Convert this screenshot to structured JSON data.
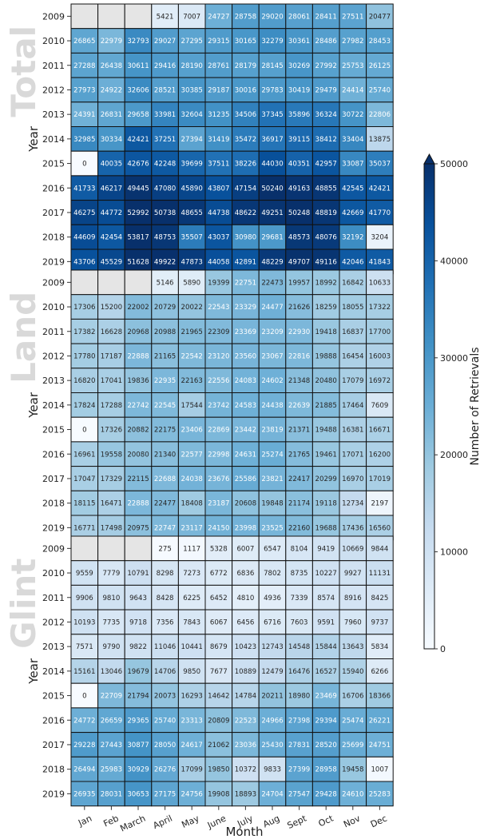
{
  "chart_data": {
    "type": "heatmap",
    "months": [
      "Jan",
      "Feb",
      "March",
      "April",
      "May",
      "June",
      "July",
      "Aug",
      "Sept",
      "Oct",
      "Nov",
      "Dec"
    ],
    "years": [
      "2009",
      "2010",
      "2011",
      "2012",
      "2013",
      "2014",
      "2015",
      "2016",
      "2017",
      "2018",
      "2019"
    ],
    "xlabel": "Month",
    "ylabel": "Year",
    "colorbar": {
      "label": "Number of Retrievals",
      "min": 0,
      "max": 50000,
      "ticks": [
        "0",
        "10000",
        "20000",
        "30000",
        "40000",
        "50000"
      ],
      "extend": "max",
      "colormap": "Blues",
      "colors": [
        "#f7fbff",
        "#deebf7",
        "#c6dbef",
        "#9ecae1",
        "#6baed6",
        "#4292c6",
        "#2171b5",
        "#08519c",
        "#08306b"
      ]
    },
    "missing_color": "#e5e5e5",
    "panels": [
      {
        "title": "Total",
        "values": [
          [
            null,
            null,
            null,
            5421,
            7007,
            24727,
            28758,
            29020,
            28061,
            28411,
            27511,
            20477
          ],
          [
            26865,
            22979,
            32793,
            29027,
            27295,
            29315,
            30165,
            32279,
            30361,
            28486,
            27982,
            28453
          ],
          [
            27288,
            26438,
            30611,
            29416,
            28190,
            28761,
            28179,
            28145,
            30269,
            27992,
            25753,
            26125
          ],
          [
            27973,
            24922,
            32606,
            28521,
            30385,
            29187,
            30016,
            29783,
            30419,
            29479,
            24414,
            25740
          ],
          [
            24391,
            26831,
            29658,
            33981,
            32604,
            31235,
            34506,
            37345,
            35896,
            36324,
            30722,
            22806
          ],
          [
            32985,
            30334,
            42421,
            37251,
            27394,
            31419,
            35472,
            36917,
            39115,
            38412,
            33404,
            13875
          ],
          [
            0,
            40035,
            42676,
            42248,
            39699,
            37511,
            38226,
            44030,
            40351,
            42957,
            33087,
            35037
          ],
          [
            41733,
            46217,
            49445,
            47080,
            45890,
            43807,
            47154,
            50240,
            49163,
            48855,
            42545,
            42421
          ],
          [
            46275,
            44772,
            52992,
            50738,
            48655,
            44738,
            48622,
            49251,
            50248,
            48819,
            42669,
            41770
          ],
          [
            44609,
            42454,
            53817,
            48753,
            35507,
            43037,
            30980,
            29681,
            48573,
            48076,
            32192,
            3204
          ],
          [
            43706,
            45529,
            51628,
            49922,
            47873,
            44058,
            42891,
            48229,
            49707,
            49116,
            42046,
            41843
          ]
        ]
      },
      {
        "title": "Land",
        "values": [
          [
            null,
            null,
            null,
            5146,
            5890,
            19399,
            22751,
            22473,
            19957,
            18992,
            16842,
            10633
          ],
          [
            17306,
            15200,
            22002,
            20729,
            20022,
            22543,
            23329,
            24477,
            21626,
            18259,
            18055,
            17322
          ],
          [
            17382,
            16628,
            20968,
            20988,
            21965,
            22309,
            23369,
            23209,
            22930,
            19418,
            16837,
            17700
          ],
          [
            17780,
            17187,
            22888,
            21165,
            22542,
            23120,
            23560,
            23067,
            22816,
            19888,
            16454,
            16003
          ],
          [
            16820,
            17041,
            19836,
            22935,
            22163,
            22556,
            24083,
            24602,
            21348,
            20480,
            17079,
            16972
          ],
          [
            17824,
            17288,
            22742,
            22545,
            17544,
            23742,
            24583,
            24438,
            22639,
            21885,
            17464,
            7609
          ],
          [
            0,
            17326,
            20882,
            22175,
            23406,
            22869,
            23442,
            23819,
            21371,
            19488,
            16381,
            16671
          ],
          [
            16961,
            19558,
            20080,
            21340,
            22577,
            22998,
            24631,
            25274,
            21765,
            19461,
            17071,
            16200
          ],
          [
            17047,
            17329,
            22115,
            22688,
            24038,
            23676,
            25586,
            23821,
            22417,
            20299,
            16970,
            17019
          ],
          [
            18115,
            16471,
            22888,
            22477,
            18408,
            23187,
            20608,
            19848,
            21174,
            19118,
            12734,
            2197
          ],
          [
            16771,
            17498,
            20975,
            22747,
            23117,
            24150,
            23998,
            23525,
            22160,
            19688,
            17436,
            16560
          ]
        ]
      },
      {
        "title": "Glint",
        "values": [
          [
            null,
            null,
            null,
            275,
            1117,
            5328,
            6007,
            6547,
            8104,
            9419,
            10669,
            9844
          ],
          [
            9559,
            7779,
            10791,
            8298,
            7273,
            6772,
            6836,
            7802,
            8735,
            10227,
            9927,
            11131
          ],
          [
            9906,
            9810,
            9643,
            8428,
            6225,
            6452,
            4810,
            4936,
            7339,
            8574,
            8916,
            8425
          ],
          [
            10193,
            7735,
            9718,
            7356,
            7843,
            6067,
            6456,
            6716,
            7603,
            9591,
            7960,
            9737
          ],
          [
            7571,
            9790,
            9822,
            11046,
            10441,
            8679,
            10423,
            12743,
            14548,
            15844,
            13643,
            5834
          ],
          [
            15161,
            13046,
            19679,
            14706,
            9850,
            7677,
            10889,
            12479,
            16476,
            16527,
            15940,
            6266
          ],
          [
            0,
            22709,
            21794,
            20073,
            16293,
            14642,
            14784,
            20211,
            18980,
            23469,
            16706,
            18366
          ],
          [
            24772,
            26659,
            29365,
            25740,
            23313,
            20809,
            22523,
            24966,
            27398,
            29394,
            25474,
            26221
          ],
          [
            29228,
            27443,
            30877,
            28050,
            24617,
            21062,
            23036,
            25430,
            27831,
            28520,
            25699,
            24751
          ],
          [
            26494,
            25983,
            30929,
            26276,
            17099,
            19850,
            10372,
            9833,
            27399,
            28958,
            19458,
            1007
          ],
          [
            26935,
            28031,
            30653,
            27175,
            24756,
            19908,
            18893,
            24704,
            27547,
            29428,
            24610,
            25283
          ]
        ]
      }
    ]
  }
}
